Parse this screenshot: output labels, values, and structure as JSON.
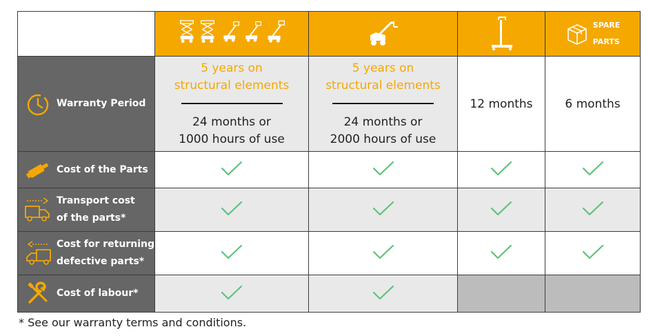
{
  "header": {
    "col1_icons": [
      "scissor-lift-icon",
      "scissor-lift-icon",
      "boom-lift-icon",
      "boom-lift-icon",
      "boom-lift-icon"
    ],
    "col2_icon": "telehandler-icon",
    "col3_icon": "mast-lift-icon",
    "col4_icon": "parcel-box-icon",
    "col4_label_line1": "SPARE",
    "col4_label_line2": "PARTS"
  },
  "rows": {
    "warranty": {
      "label": "Warranty Period",
      "icon": "clock-icon",
      "col1_orange_1": "5 years on",
      "col1_orange_2": "structural elements",
      "col1_black_1": "24 months or",
      "col1_black_2": "1000 hours of use",
      "col2_orange_1": "5 years on",
      "col2_orange_2": "structural elements",
      "col2_black_1": "24 months or",
      "col2_black_2": "2000 hours of use",
      "col3": "12 months",
      "col4": "6 months"
    },
    "parts": {
      "label": "Cost of the Parts",
      "icon": "cylinder-part-icon"
    },
    "transport": {
      "label_1": "Transport cost",
      "label_2": "of the parts*",
      "icon": "truck-forward-icon"
    },
    "returning": {
      "label_1": "Cost for returning",
      "label_2": "defective parts*",
      "icon": "truck-return-icon"
    },
    "labour": {
      "label": "Cost of labour*",
      "icon": "wrench-screwdriver-icon"
    }
  },
  "colors": {
    "accent": "#f5a800",
    "label_bg": "#666666",
    "check": "#5cc27a",
    "na": "#bcbcbc"
  },
  "footnote": "* See our warranty terms and conditions."
}
